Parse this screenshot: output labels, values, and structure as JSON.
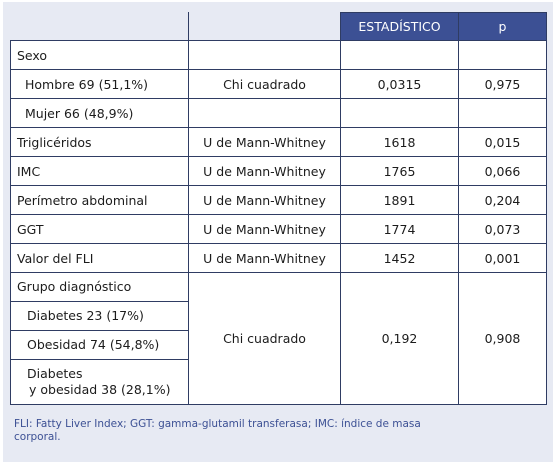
{
  "header": {
    "col_test": "",
    "col_stat": "ESTADÍSTICO",
    "col_p": "p"
  },
  "sexo": {
    "label": "Sexo",
    "hombre": "Hombre 69 (51,1%)",
    "mujer": "Mujer 66 (48,9%)",
    "test": "Chi cuadrado",
    "stat": "0,0315",
    "p": "0,975"
  },
  "rows": [
    {
      "label": "Triglicéridos",
      "test": "U de Mann-Whitney",
      "stat": "1618",
      "p": "0,015"
    },
    {
      "label": "IMC",
      "test": "U de Mann-Whitney",
      "stat": "1765",
      "p": "0,066"
    },
    {
      "label": "Perímetro abdominal",
      "test": "U de Mann-Whitney",
      "stat": "1891",
      "p": "0,204"
    },
    {
      "label": "GGT",
      "test": "U de Mann-Whitney",
      "stat": "1774",
      "p": "0,073"
    },
    {
      "label": "Valor del FLI",
      "test": "U de Mann-Whitney",
      "stat": "1452",
      "p": "0,001"
    }
  ],
  "grupo": {
    "label": "Grupo diagnóstico",
    "diabetes": "Diabetes 23 (17%)",
    "obesidad": "Obesidad 74 (54,8%)",
    "ambos_1": "Diabetes",
    "ambos_2": "y obesidad 38 (28,1%)",
    "test": "Chi cuadrado",
    "stat": "0,192",
    "p": "0,908"
  },
  "footnote": "FLI: Fatty Liver Index; GGT: gamma-glutamil transferasa; IMC: índice de masa corporal."
}
